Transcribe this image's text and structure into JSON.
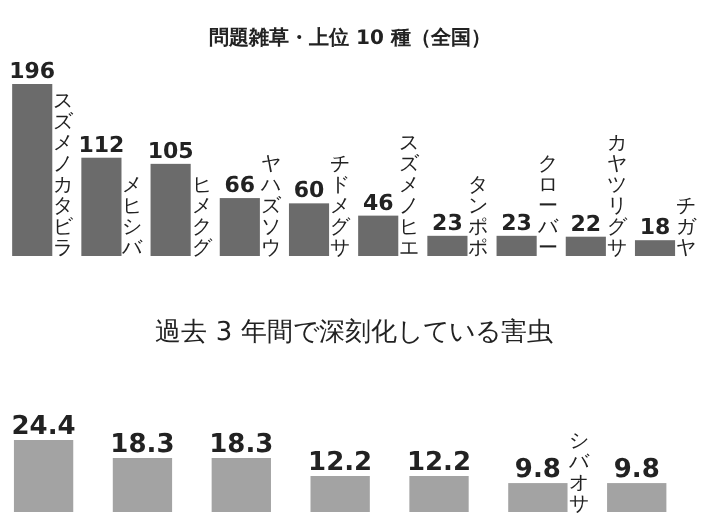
{
  "chart_data": [
    {
      "type": "bar",
      "title": "問題雑草・上位 10 種（全国）",
      "categories": [
        "スズメノカタビラ",
        "メヒシバ",
        "ヒメクグ",
        "ヤハズソウ",
        "チドメグサ",
        "スズメノヒエ",
        "タンポポ",
        "クローバー",
        "カヤツリグサ",
        "チガヤ"
      ],
      "values": [
        196,
        112,
        105,
        66,
        60,
        46,
        23,
        23,
        22,
        18
      ],
      "color": "#6b6b6b",
      "data_labels": true
    },
    {
      "type": "bar",
      "title": "過去 3 年間で深刻化している害虫",
      "categories": [
        null,
        null,
        null,
        null,
        null,
        "シバオサ",
        null
      ],
      "values": [
        24.4,
        18.3,
        18.3,
        12.2,
        12.2,
        9.8,
        9.8
      ],
      "color": "#a3a3a3",
      "data_labels": true
    }
  ]
}
